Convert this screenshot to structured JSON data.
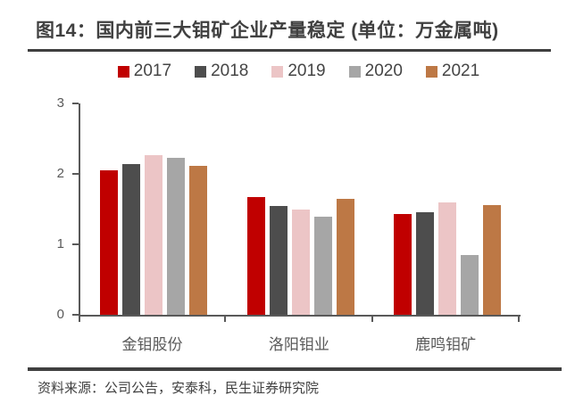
{
  "page": {
    "title": "图14：国内前三大钼矿企业产量稳定 (单位：万金属吨)",
    "source": "资料来源：公司公告，安泰科，民生证券研究院"
  },
  "colors": {
    "title_text": "#404040",
    "divider": "#404040",
    "axis_line": "#595959",
    "axis_text": "#595959",
    "legend_text": "#454545"
  },
  "chart_data": {
    "type": "bar",
    "title": "国内前三大钼矿企业产量稳定",
    "unit": "万金属吨",
    "categories": [
      "金钼股份",
      "洛阳钼业",
      "鹿鸣钼矿"
    ],
    "series": [
      {
        "name": "2017",
        "color": "#C00000",
        "values": [
          2.05,
          1.67,
          1.43
        ]
      },
      {
        "name": "2018",
        "color": "#4D4D4D",
        "values": [
          2.14,
          1.54,
          1.45
        ]
      },
      {
        "name": "2019",
        "color": "#ECC5C6",
        "values": [
          2.27,
          1.5,
          1.59
        ]
      },
      {
        "name": "2020",
        "color": "#A6A6A6",
        "values": [
          2.23,
          1.39,
          0.85
        ]
      },
      {
        "name": "2021",
        "color": "#BD7845",
        "values": [
          2.12,
          1.64,
          1.56
        ]
      }
    ],
    "ylim": [
      0,
      3
    ],
    "yticks": [
      0,
      1,
      2,
      3
    ],
    "legend_position": "top",
    "grid": false
  }
}
